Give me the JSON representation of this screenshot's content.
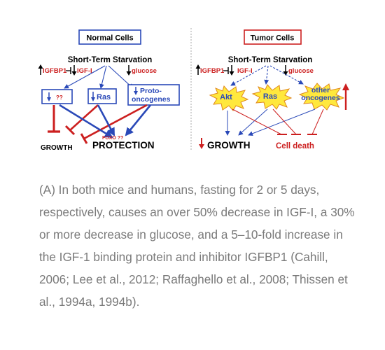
{
  "figure": {
    "normal": {
      "title": "Normal Cells",
      "starvation": "Short-Term Starvation",
      "igfbp1": "IGFBP1",
      "igf1": "IGF-I",
      "glucose": "glucose",
      "unknown": "??",
      "ras": "Ras",
      "proto_line1": "Proto-",
      "proto_line2": "oncogenes",
      "foxo": "FOXO ??",
      "growth": "GROWTH",
      "protection": "PROTECTION"
    },
    "tumor": {
      "title": "Tumor Cells",
      "starvation": "Short-Term Starvation",
      "igfbp1": "IGFBP1",
      "igf1": "IGF-I",
      "glucose": "glucose",
      "akt": "Akt",
      "ras": "Ras",
      "other_line1": "other",
      "other_line2": "oncogenes",
      "growth": "GROWTH",
      "cell_death": "Cell death"
    },
    "colors": {
      "blue": "#2a49b8",
      "red": "#cc1f1f",
      "star": "#ffe83d"
    }
  },
  "caption": "(A) In both mice and humans, fasting for 2 or 5 days, respectively, causes an over 50% decrease in IGF-I, a 30% or more decrease in glucose, and a 5–10-fold increase in the IGF-1 binding protein and inhibitor IGFBP1 (Cahill, 2006; Lee et al., 2012; Raffaghello et al., 2008; Thissen et al., 1994a, 1994b)."
}
